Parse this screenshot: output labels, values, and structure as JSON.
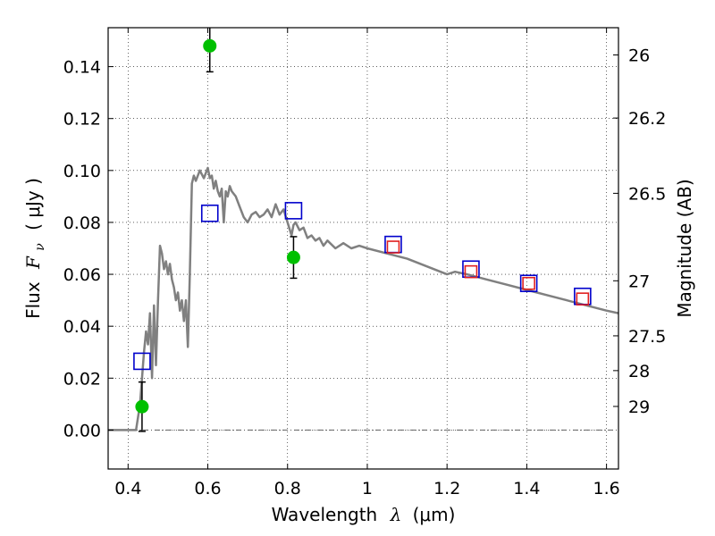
{
  "chart_data": {
    "type": "scatter",
    "xlabel": "Wavelength",
    "xlabel_symbol": "λ",
    "xlabel_unit": "(μm)",
    "ylabel": "Flux",
    "ylabel_symbol": "F",
    "ylabel_subscript": "ν",
    "ylabel_unit": "( μJy )",
    "y2label": "Magnitude (AB)",
    "xlim": [
      0.35,
      1.63
    ],
    "ylim": [
      -0.015,
      0.155
    ],
    "grid": true,
    "x_ticks": [
      0.4,
      0.6,
      0.8,
      1.0,
      1.2,
      1.4,
      1.6
    ],
    "x_tick_labels": [
      "0.4",
      "0.6",
      "0.8",
      "1",
      "1.2",
      "1.4",
      "1.6"
    ],
    "y_ticks": [
      0.0,
      0.02,
      0.04,
      0.06,
      0.08,
      0.1,
      0.12,
      0.14
    ],
    "y_tick_labels": [
      "0.00",
      "0.02",
      "0.04",
      "0.06",
      "0.08",
      "0.10",
      "0.12",
      "0.14"
    ],
    "y2_ticks": [
      {
        "label": "26",
        "flux": 0.1445
      },
      {
        "label": "26.2",
        "flux": 0.1202
      },
      {
        "label": "26.5",
        "flux": 0.0912
      },
      {
        "label": "27",
        "flux": 0.0575
      },
      {
        "label": "27.5",
        "flux": 0.0363
      },
      {
        "label": "28",
        "flux": 0.0229
      },
      {
        "label": "29",
        "flux": 0.0091
      }
    ],
    "zero_line": 0.0,
    "series": [
      {
        "kind": "line",
        "color": "#808080",
        "x": [
          0.35,
          0.42,
          0.43,
          0.44,
          0.445,
          0.45,
          0.455,
          0.46,
          0.465,
          0.47,
          0.475,
          0.48,
          0.485,
          0.49,
          0.495,
          0.5,
          0.505,
          0.51,
          0.515,
          0.52,
          0.525,
          0.53,
          0.535,
          0.54,
          0.545,
          0.55,
          0.555,
          0.56,
          0.565,
          0.57,
          0.58,
          0.59,
          0.6,
          0.605,
          0.61,
          0.615,
          0.62,
          0.625,
          0.63,
          0.635,
          0.64,
          0.645,
          0.65,
          0.655,
          0.66,
          0.67,
          0.68,
          0.69,
          0.7,
          0.71,
          0.72,
          0.73,
          0.74,
          0.75,
          0.76,
          0.77,
          0.78,
          0.79,
          0.8,
          0.81,
          0.815,
          0.82,
          0.83,
          0.84,
          0.85,
          0.86,
          0.87,
          0.88,
          0.89,
          0.9,
          0.92,
          0.94,
          0.96,
          0.98,
          1.0,
          1.05,
          1.1,
          1.15,
          1.2,
          1.22,
          1.25,
          1.3,
          1.35,
          1.4,
          1.45,
          1.5,
          1.55,
          1.6,
          1.63
        ],
        "y": [
          0.0,
          0.0,
          0.01,
          0.03,
          0.038,
          0.033,
          0.045,
          0.02,
          0.048,
          0.025,
          0.05,
          0.071,
          0.068,
          0.062,
          0.065,
          0.06,
          0.064,
          0.058,
          0.055,
          0.05,
          0.053,
          0.046,
          0.05,
          0.042,
          0.05,
          0.032,
          0.06,
          0.095,
          0.098,
          0.096,
          0.1,
          0.097,
          0.101,
          0.097,
          0.098,
          0.093,
          0.096,
          0.092,
          0.09,
          0.093,
          0.08,
          0.092,
          0.09,
          0.094,
          0.092,
          0.09,
          0.086,
          0.082,
          0.08,
          0.083,
          0.084,
          0.082,
          0.083,
          0.085,
          0.082,
          0.087,
          0.083,
          0.085,
          0.08,
          0.075,
          0.079,
          0.08,
          0.077,
          0.078,
          0.074,
          0.075,
          0.073,
          0.074,
          0.071,
          0.073,
          0.07,
          0.072,
          0.07,
          0.071,
          0.07,
          0.068,
          0.066,
          0.063,
          0.06,
          0.061,
          0.06,
          0.058,
          0.056,
          0.054,
          0.052,
          0.05,
          0.048,
          0.046,
          0.045
        ]
      },
      {
        "kind": "points",
        "marker": "circle",
        "color": "#00c000",
        "x": [
          0.435,
          0.605,
          0.815
        ],
        "y": [
          0.009,
          0.148,
          0.0665
        ],
        "yerr": [
          0.0095,
          0.01,
          0.008
        ]
      },
      {
        "kind": "points",
        "marker": "square",
        "color": "#0000cc",
        "x": [
          0.435,
          0.605,
          0.815,
          1.065,
          1.26,
          1.405,
          1.54
        ],
        "y": [
          0.0265,
          0.0835,
          0.0845,
          0.0715,
          0.062,
          0.0565,
          0.0515
        ]
      },
      {
        "kind": "points",
        "marker": "square",
        "color": "#e02020",
        "x": [
          1.065,
          1.26,
          1.405,
          1.54
        ],
        "y": [
          0.0705,
          0.061,
          0.0565,
          0.0505
        ]
      }
    ]
  }
}
